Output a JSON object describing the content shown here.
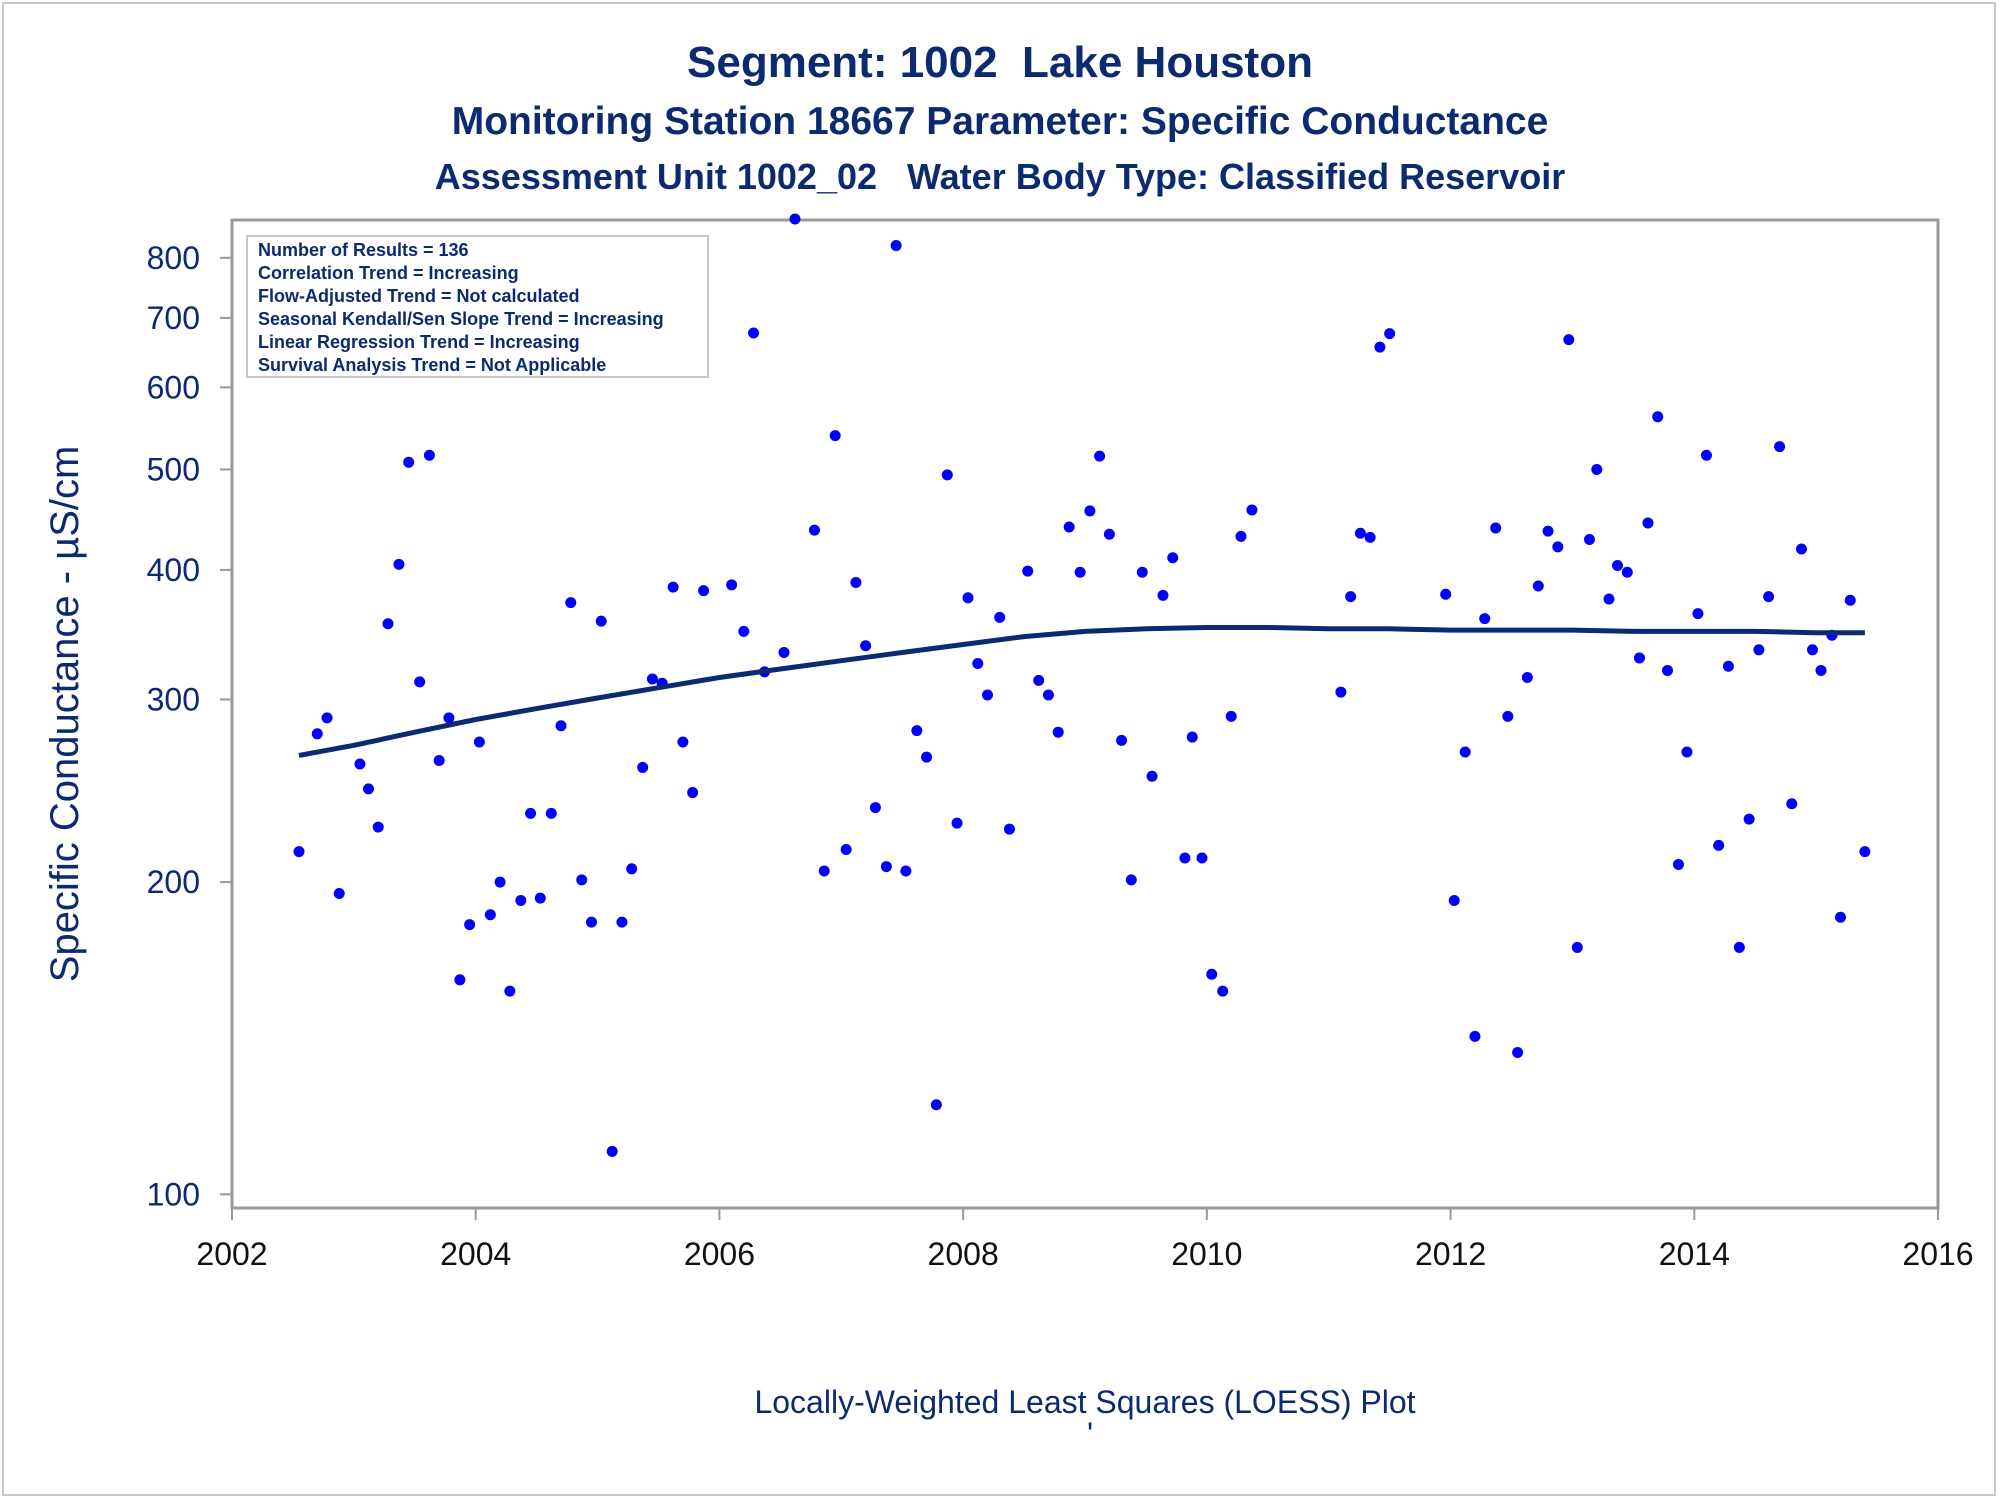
{
  "titles": {
    "line1": "Segment: 1002  Lake Houston",
    "line2": "Monitoring Station 18667 Parameter: Specific Conductance",
    "line3": "Assessment Unit 1002_02   Water Body Type: Classified Reservoir"
  },
  "stats_box": [
    "Number of Results = 136",
    "Correlation Trend = Increasing",
    "Flow-Adjusted Trend = Not calculated",
    "Seasonal Kendall/Sen Slope Trend = Increasing",
    "Linear Regression Trend = Increasing",
    "Survival Analysis Trend = Not Applicable"
  ],
  "footer": "Locally-Weighted Least Squares (LOESS) Plot",
  "footer_mark": "'",
  "colors": {
    "points": "#0000ff",
    "loess": "#0b2a6f",
    "text": "#0b2a6f",
    "axis": "#9a9a9a"
  },
  "chart_data": {
    "type": "scatter",
    "ylabel": "Specific Conductance -  µS/cm",
    "xlabel": "",
    "yscale": "log",
    "xlim": [
      2002,
      2016
    ],
    "ylim": [
      97,
      870
    ],
    "xticks": [
      2002,
      2004,
      2006,
      2008,
      2010,
      2012,
      2014,
      2016
    ],
    "yticks": [
      100,
      200,
      300,
      400,
      500,
      600,
      700,
      800
    ],
    "points": [
      [
        2002.55,
        214
      ],
      [
        2002.7,
        278
      ],
      [
        2002.78,
        288
      ],
      [
        2002.88,
        195
      ],
      [
        2003.05,
        260
      ],
      [
        2003.12,
        246
      ],
      [
        2003.2,
        226
      ],
      [
        2003.28,
        355
      ],
      [
        2003.37,
        405
      ],
      [
        2003.45,
        508
      ],
      [
        2003.54,
        312
      ],
      [
        2003.62,
        516
      ],
      [
        2003.7,
        262
      ],
      [
        2003.78,
        288
      ],
      [
        2003.87,
        161
      ],
      [
        2003.95,
        182
      ],
      [
        2004.03,
        273
      ],
      [
        2004.12,
        186
      ],
      [
        2004.2,
        200
      ],
      [
        2004.28,
        157
      ],
      [
        2004.37,
        192
      ],
      [
        2004.45,
        233
      ],
      [
        2004.53,
        193
      ],
      [
        2004.62,
        233
      ],
      [
        2004.7,
        283
      ],
      [
        2004.78,
        372
      ],
      [
        2004.87,
        201
      ],
      [
        2004.95,
        183
      ],
      [
        2005.03,
        357
      ],
      [
        2005.12,
        110
      ],
      [
        2005.2,
        183
      ],
      [
        2005.28,
        206
      ],
      [
        2005.37,
        258
      ],
      [
        2005.45,
        314
      ],
      [
        2005.53,
        311
      ],
      [
        2005.62,
        385
      ],
      [
        2005.7,
        273
      ],
      [
        2005.78,
        244
      ],
      [
        2005.87,
        382
      ],
      [
        2006.1,
        387
      ],
      [
        2006.2,
        349
      ],
      [
        2006.28,
        677
      ],
      [
        2006.37,
        319
      ],
      [
        2006.53,
        333
      ],
      [
        2006.62,
        872
      ],
      [
        2006.78,
        437
      ],
      [
        2006.86,
        205
      ],
      [
        2006.95,
        539
      ],
      [
        2007.04,
        215
      ],
      [
        2007.12,
        389
      ],
      [
        2007.2,
        338
      ],
      [
        2007.28,
        236
      ],
      [
        2007.37,
        207
      ],
      [
        2007.45,
        822
      ],
      [
        2007.53,
        205
      ],
      [
        2007.62,
        280
      ],
      [
        2007.7,
        264
      ],
      [
        2007.78,
        122
      ],
      [
        2007.87,
        494
      ],
      [
        2007.95,
        228
      ],
      [
        2008.04,
        376
      ],
      [
        2008.12,
        325
      ],
      [
        2008.2,
        303
      ],
      [
        2008.3,
        360
      ],
      [
        2008.38,
        225
      ],
      [
        2008.53,
        399
      ],
      [
        2008.62,
        313
      ],
      [
        2008.7,
        303
      ],
      [
        2008.78,
        279
      ],
      [
        2008.87,
        440
      ],
      [
        2008.96,
        398
      ],
      [
        2009.04,
        456
      ],
      [
        2009.12,
        515
      ],
      [
        2009.2,
        433
      ],
      [
        2009.3,
        274
      ],
      [
        2009.38,
        201
      ],
      [
        2009.47,
        398
      ],
      [
        2009.55,
        253
      ],
      [
        2009.64,
        378
      ],
      [
        2009.72,
        411
      ],
      [
        2009.82,
        211
      ],
      [
        2009.88,
        276
      ],
      [
        2009.96,
        211
      ],
      [
        2010.04,
        163
      ],
      [
        2010.13,
        157
      ],
      [
        2010.2,
        289
      ],
      [
        2010.28,
        431
      ],
      [
        2010.37,
        457
      ],
      [
        2011.1,
        305
      ],
      [
        2011.18,
        377
      ],
      [
        2011.26,
        434
      ],
      [
        2011.34,
        430
      ],
      [
        2011.42,
        656
      ],
      [
        2011.5,
        676
      ],
      [
        2011.96,
        379
      ],
      [
        2012.03,
        192
      ],
      [
        2012.12,
        267
      ],
      [
        2012.2,
        142
      ],
      [
        2012.28,
        359
      ],
      [
        2012.37,
        439
      ],
      [
        2012.47,
        289
      ],
      [
        2012.55,
        137
      ],
      [
        2012.63,
        315
      ],
      [
        2012.72,
        386
      ],
      [
        2012.8,
        436
      ],
      [
        2012.88,
        421
      ],
      [
        2012.97,
        667
      ],
      [
        2013.04,
        173
      ],
      [
        2013.14,
        428
      ],
      [
        2013.2,
        500
      ],
      [
        2013.3,
        375
      ],
      [
        2013.37,
        404
      ],
      [
        2013.45,
        398
      ],
      [
        2013.55,
        329
      ],
      [
        2013.62,
        444
      ],
      [
        2013.7,
        562
      ],
      [
        2013.78,
        320
      ],
      [
        2013.87,
        208
      ],
      [
        2013.94,
        267
      ],
      [
        2014.03,
        363
      ],
      [
        2014.1,
        516
      ],
      [
        2014.2,
        217
      ],
      [
        2014.28,
        323
      ],
      [
        2014.37,
        173
      ],
      [
        2014.45,
        230
      ],
      [
        2014.53,
        335
      ],
      [
        2014.61,
        377
      ],
      [
        2014.7,
        526
      ],
      [
        2014.8,
        238
      ],
      [
        2014.88,
        419
      ],
      [
        2014.97,
        335
      ],
      [
        2015.04,
        320
      ],
      [
        2015.13,
        346
      ],
      [
        2015.2,
        185
      ],
      [
        2015.28,
        374
      ],
      [
        2015.4,
        214
      ]
    ],
    "series": [
      {
        "type": "line",
        "values": [
          [
            2002.55,
            265
          ],
          [
            2003.0,
            271
          ],
          [
            2003.5,
            279
          ],
          [
            2004.0,
            287
          ],
          [
            2004.5,
            294
          ],
          [
            2005.0,
            301
          ],
          [
            2005.5,
            308
          ],
          [
            2006.0,
            315
          ],
          [
            2006.5,
            321
          ],
          [
            2007.0,
            327
          ],
          [
            2007.5,
            333
          ],
          [
            2008.0,
            339
          ],
          [
            2008.5,
            345
          ],
          [
            2009.0,
            349
          ],
          [
            2009.5,
            351
          ],
          [
            2010.0,
            352
          ],
          [
            2010.5,
            352
          ],
          [
            2011.0,
            351
          ],
          [
            2011.5,
            351
          ],
          [
            2012.0,
            350
          ],
          [
            2012.5,
            350
          ],
          [
            2013.0,
            350
          ],
          [
            2013.5,
            349
          ],
          [
            2014.0,
            349
          ],
          [
            2014.5,
            349
          ],
          [
            2015.0,
            348
          ],
          [
            2015.4,
            348
          ]
        ]
      }
    ]
  }
}
